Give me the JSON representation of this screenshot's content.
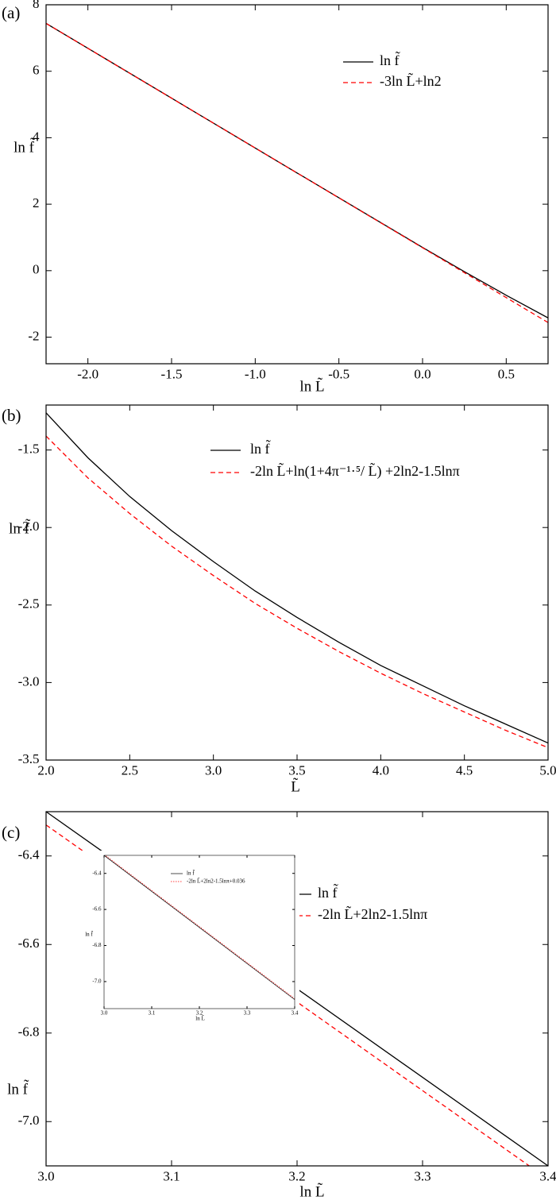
{
  "chart_data": [
    {
      "type": "line",
      "panel_label": "(a)",
      "xlabel": "ln L̃",
      "ylabel": "ln f̃",
      "x": [
        -2.25,
        -1.5,
        -0.75,
        0,
        0.25,
        0.5,
        0.75
      ],
      "series": [
        {
          "name": "ln f̃",
          "color": "#000000",
          "linestyle": "solid",
          "values": [
            7.44,
            5.19,
            2.94,
            0.7,
            -0.03,
            -0.74,
            -1.42
          ]
        },
        {
          "name": "-3ln L̃+ln2",
          "color": "#ff0000",
          "linestyle": "dashed",
          "values": [
            7.44,
            5.19,
            2.94,
            0.69,
            -0.06,
            -0.81,
            -1.56
          ]
        }
      ],
      "xlim": [
        -2.25,
        0.75
      ],
      "ylim": [
        -2.8,
        8
      ],
      "xticks": [
        {
          "value": -2,
          "label": "-2.0"
        },
        -1.5,
        {
          "value": -1,
          "label": "-1.0"
        },
        -0.5,
        {
          "value": 0,
          "label": "0.0"
        },
        0.5
      ],
      "yticks": [
        -2,
        0,
        2,
        4,
        6,
        8
      ]
    },
    {
      "type": "line",
      "panel_label": "(b)",
      "xlabel": "L̃",
      "ylabel": "ln f̃",
      "x": [
        2,
        2.25,
        2.5,
        2.75,
        3,
        3.25,
        3.5,
        3.75,
        4,
        4.25,
        4.5,
        4.75,
        5
      ],
      "series": [
        {
          "name": "ln f̃",
          "color": "#000000",
          "linestyle": "solid",
          "values": [
            -1.26,
            -1.55,
            -1.8,
            -2.02,
            -2.22,
            -2.41,
            -2.58,
            -2.74,
            -2.89,
            -3.02,
            -3.15,
            -3.27,
            -3.39
          ]
        },
        {
          "name": "-2ln L̃+ln(1+4π⁻¹·⁵/ L̃) +2ln2-1.5lnπ",
          "color": "#ff0000",
          "linestyle": "dashed",
          "values": [
            -1.41,
            -1.68,
            -1.91,
            -2.12,
            -2.31,
            -2.49,
            -2.65,
            -2.8,
            -2.94,
            -3.07,
            -3.19,
            -3.31,
            -3.42
          ]
        }
      ],
      "xlim": [
        2,
        5
      ],
      "ylim": [
        -3.5,
        -1.21
      ],
      "xticks": [
        {
          "value": 2,
          "label": "2.0"
        },
        2.5,
        {
          "value": 3,
          "label": "3.0"
        },
        3.5,
        {
          "value": 4,
          "label": "4.0"
        },
        4.5,
        {
          "value": 5,
          "label": "5.0"
        }
      ],
      "yticks": [
        -1.5,
        {
          "value": -2,
          "label": "-2.0"
        },
        -2.5,
        {
          "value": -3,
          "label": "-3.0"
        },
        -3.5
      ]
    },
    {
      "type": "line",
      "panel_label": "(c)",
      "xlabel": "ln L̃",
      "ylabel": "ln f̃",
      "x": [
        3,
        3.4
      ],
      "series": [
        {
          "name": "ln f̃",
          "color": "#000000",
          "linestyle": "solid",
          "values": [
            -6.3,
            -7.1
          ]
        },
        {
          "name": "-2ln L̃+2ln2-1.5lnπ",
          "color": "#ff0000",
          "linestyle": "dashed",
          "values": [
            -6.33,
            -7.13
          ]
        }
      ],
      "xlim": [
        3,
        3.4
      ],
      "ylim": [
        -7.1,
        -6.3
      ],
      "xticks": [
        {
          "value": 3,
          "label": "3.0"
        },
        3.1,
        3.2,
        3.3,
        3.4
      ],
      "yticks": [
        -6.4,
        -6.6,
        -6.8,
        {
          "value": -7,
          "label": "-7.0"
        }
      ]
    },
    {
      "type": "line",
      "xlabel": "ln L̃",
      "ylabel": "ln f̃",
      "x": [
        3,
        3.4
      ],
      "series": [
        {
          "name": "ln f̃",
          "color": "#000000",
          "linestyle": "solid",
          "values": [
            -6.3,
            -7.1
          ]
        },
        {
          "name": "-2ln L̃+2ln2-1.5lnπ+0.036",
          "color": "#ff0000",
          "linestyle": "dotted",
          "values": [
            -6.295,
            -7.095
          ]
        }
      ],
      "xlim": [
        3,
        3.4
      ],
      "ylim": [
        -7.15,
        -6.3
      ],
      "xticks": [
        {
          "value": 3,
          "label": "3.0"
        },
        3.1,
        3.2,
        3.3,
        3.4
      ],
      "yticks": [
        -6.4,
        -6.6,
        -6.8,
        {
          "value": -7,
          "label": "-7.0"
        }
      ]
    }
  ]
}
